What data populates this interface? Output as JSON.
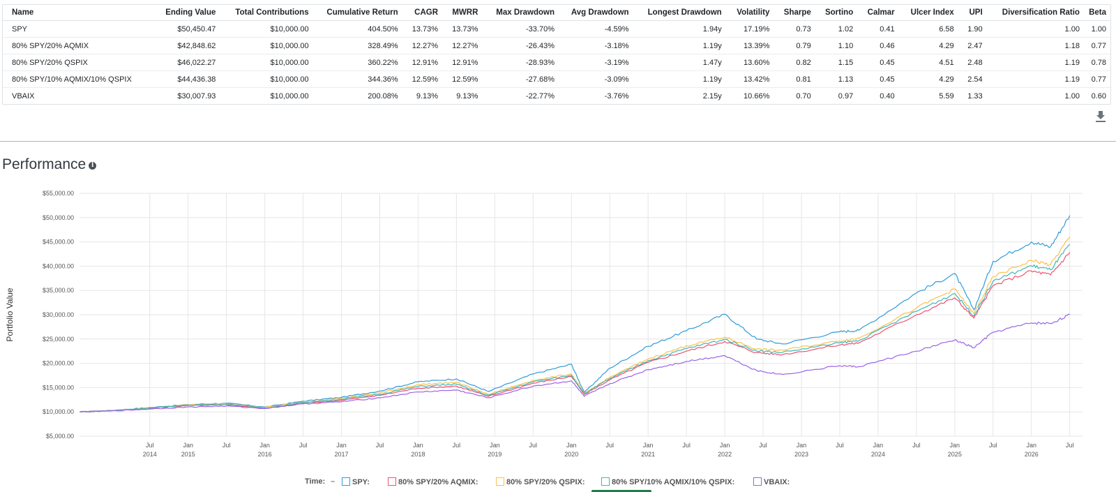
{
  "table": {
    "headers": [
      "Name",
      "Ending Value",
      "Total Contributions",
      "Cumulative Return",
      "CAGR",
      "MWRR",
      "Max Drawdown",
      "Avg Drawdown",
      "Longest Drawdown",
      "Volatility",
      "Sharpe",
      "Sortino",
      "Calmar",
      "Ulcer Index",
      "UPI",
      "Diversification Ratio",
      "Beta"
    ],
    "rows": [
      [
        "SPY",
        "$50,450.47",
        "$10,000.00",
        "404.50%",
        "13.73%",
        "13.73%",
        "-33.70%",
        "-4.59%",
        "1.94y",
        "17.19%",
        "0.73",
        "1.02",
        "0.41",
        "6.58",
        "1.90",
        "1.00",
        "1.00"
      ],
      [
        "80% SPY/20% AQMIX",
        "$42,848.62",
        "$10,000.00",
        "328.49%",
        "12.27%",
        "12.27%",
        "-26.43%",
        "-3.18%",
        "1.19y",
        "13.39%",
        "0.79",
        "1.10",
        "0.46",
        "4.29",
        "2.47",
        "1.18",
        "0.77"
      ],
      [
        "80% SPY/20% QSPIX",
        "$46,022.27",
        "$10,000.00",
        "360.22%",
        "12.91%",
        "12.91%",
        "-28.93%",
        "-3.19%",
        "1.47y",
        "13.60%",
        "0.82",
        "1.15",
        "0.45",
        "4.51",
        "2.48",
        "1.19",
        "0.78"
      ],
      [
        "80% SPY/10% AQMIX/10% QSPIX",
        "$44,436.38",
        "$10,000.00",
        "344.36%",
        "12.59%",
        "12.59%",
        "-27.68%",
        "-3.09%",
        "1.19y",
        "13.42%",
        "0.81",
        "1.13",
        "0.45",
        "4.29",
        "2.54",
        "1.19",
        "0.77"
      ],
      [
        "VBAIX",
        "$30,007.93",
        "$10,000.00",
        "200.08%",
        "9.13%",
        "9.13%",
        "-22.77%",
        "-3.76%",
        "2.15y",
        "10.66%",
        "0.70",
        "0.97",
        "0.40",
        "5.59",
        "1.33",
        "1.00",
        "0.60"
      ]
    ]
  },
  "section": {
    "title": "Performance",
    "info_icon": "info-icon",
    "download_icon": "download-icon"
  },
  "legend": {
    "time_label": "Time:",
    "time_value": "–"
  },
  "colors": {
    "SPY": "#2f9bd9",
    "AQMIX": "#f0506e",
    "QSPIX": "#fbc04c",
    "MIX": "#3fb6b6",
    "VBAIX": "#9a63e8"
  },
  "chart_data": {
    "type": "line",
    "ylabel": "Portfolio Value",
    "xlabel": "",
    "ylim": [
      5000,
      55000
    ],
    "y_ticks": [
      "$5,000.00",
      "$10,000.00",
      "$15,000.00",
      "$20,000.00",
      "$25,000.00",
      "$30,000.00",
      "$35,000.00",
      "$40,000.00",
      "$45,000.00",
      "$50,000.00",
      "$55,000.00"
    ],
    "y_tick_values": [
      5000,
      10000,
      15000,
      20000,
      25000,
      30000,
      35000,
      40000,
      45000,
      50000,
      55000
    ],
    "x_ticks": [
      {
        "t": "2014-07",
        "label": "Jul",
        "year": "2014"
      },
      {
        "t": "2015-01",
        "label": "Jan",
        "year": "2015"
      },
      {
        "t": "2015-07",
        "label": "Jul",
        "year": ""
      },
      {
        "t": "2016-01",
        "label": "Jan",
        "year": "2016"
      },
      {
        "t": "2016-07",
        "label": "Jul",
        "year": ""
      },
      {
        "t": "2017-01",
        "label": "Jan",
        "year": "2017"
      },
      {
        "t": "2017-07",
        "label": "Jul",
        "year": ""
      },
      {
        "t": "2018-01",
        "label": "Jan",
        "year": "2018"
      },
      {
        "t": "2018-07",
        "label": "Jul",
        "year": ""
      },
      {
        "t": "2019-01",
        "label": "Jan",
        "year": "2019"
      },
      {
        "t": "2019-07",
        "label": "Jul",
        "year": ""
      },
      {
        "t": "2020-01",
        "label": "Jan",
        "year": "2020"
      },
      {
        "t": "2020-07",
        "label": "Jul",
        "year": ""
      },
      {
        "t": "2021-01",
        "label": "Jan",
        "year": "2021"
      },
      {
        "t": "2021-07",
        "label": "Jul",
        "year": ""
      },
      {
        "t": "2022-01",
        "label": "Jan",
        "year": "2022"
      },
      {
        "t": "2022-07",
        "label": "Jul",
        "year": ""
      },
      {
        "t": "2023-01",
        "label": "Jan",
        "year": "2023"
      },
      {
        "t": "2023-07",
        "label": "Jul",
        "year": ""
      },
      {
        "t": "2024-01",
        "label": "Jan",
        "year": "2024"
      },
      {
        "t": "2024-07",
        "label": "Jul",
        "year": ""
      },
      {
        "t": "2025-01",
        "label": "Jan",
        "year": "2025"
      },
      {
        "t": "2025-07",
        "label": "Jul",
        "year": ""
      },
      {
        "t": "2026-01",
        "label": "Jan",
        "year": "2026"
      },
      {
        "t": "2026-07",
        "label": "Jul",
        "year": ""
      }
    ],
    "x": [
      "2013-08",
      "2014-01",
      "2014-07",
      "2015-01",
      "2015-07",
      "2016-01",
      "2016-07",
      "2017-01",
      "2017-07",
      "2018-01",
      "2018-07",
      "2018-12",
      "2019-07",
      "2020-01",
      "2020-03",
      "2020-07",
      "2021-01",
      "2021-07",
      "2022-01",
      "2022-06",
      "2022-10",
      "2023-07",
      "2023-10",
      "2024-07",
      "2025-01",
      "2025-04",
      "2025-07",
      "2026-01",
      "2026-04",
      "2026-07"
    ],
    "series": [
      {
        "name": "SPY",
        "color": "#2f9bd9",
        "values": [
          10000,
          10300,
          10900,
          11500,
          11800,
          11000,
          12200,
          13000,
          14300,
          16200,
          16800,
          14200,
          17800,
          19800,
          14000,
          19000,
          23500,
          26700,
          30100,
          25000,
          24000,
          26500,
          26800,
          34500,
          38500,
          31000,
          41000,
          45000,
          44000,
          50450
        ]
      },
      {
        "name": "80% SPY/20% AQMIX",
        "color": "#f0506e",
        "values": [
          10000,
          10250,
          10750,
          11300,
          11500,
          10700,
          11800,
          12400,
          13400,
          14900,
          15300,
          13200,
          15900,
          17300,
          13600,
          16600,
          20200,
          22500,
          24500,
          22200,
          21800,
          23800,
          24200,
          30000,
          33500,
          29300,
          36000,
          39000,
          38200,
          42850
        ]
      },
      {
        "name": "80% SPY/20% QSPIX",
        "color": "#fbc04c",
        "values": [
          10000,
          10280,
          10850,
          11450,
          11700,
          10900,
          12050,
          12800,
          13900,
          15600,
          16100,
          13600,
          16500,
          17800,
          13800,
          17100,
          20900,
          23600,
          25400,
          22900,
          22700,
          24600,
          25200,
          31400,
          35300,
          30200,
          37800,
          41200,
          40300,
          46020
        ]
      },
      {
        "name": "80% SPY/10% AQMIX/10% QSPIX",
        "color": "#3fb6b6",
        "values": [
          10000,
          10270,
          10800,
          11380,
          11600,
          10800,
          11930,
          12600,
          13650,
          15250,
          15700,
          13400,
          16200,
          17550,
          13700,
          16850,
          20550,
          23050,
          24950,
          22550,
          22250,
          24200,
          24700,
          30700,
          34400,
          29750,
          36900,
          40100,
          39250,
          44440
        ]
      },
      {
        "name": "VBAIX",
        "color": "#9a63e8",
        "values": [
          10000,
          10200,
          10600,
          11000,
          11200,
          10700,
          11650,
          12100,
          12900,
          14100,
          14500,
          12900,
          15300,
          16400,
          13200,
          15800,
          18700,
          20400,
          21600,
          18500,
          17700,
          19500,
          19300,
          22500,
          24800,
          23200,
          26400,
          28300,
          28200,
          30010
        ]
      }
    ]
  }
}
